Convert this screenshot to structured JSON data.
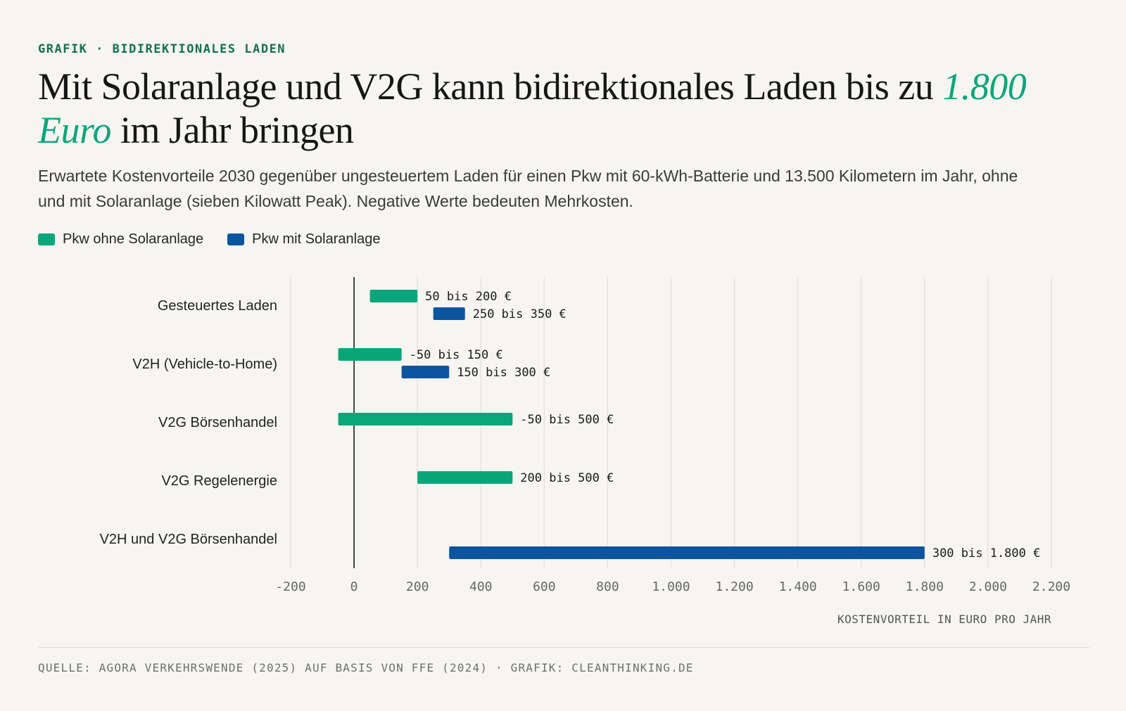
{
  "kicker": "GRAFIK · BIDIREKTIONALES LADEN",
  "title": {
    "before": "Mit Solaranlage und V2G kann bidirektionales Laden bis zu ",
    "highlight": "1.800 Euro",
    "after": " im Jahr bringen"
  },
  "subtitle": "Erwartete Kostenvorteile 2030 gegenüber ungesteuertem Laden für einen Pkw mit 60-kWh-Batterie und 13.500 Kilometern im Jahr, ohne und mit Solaranlage (sieben Kilowatt Peak). Negative Werte bedeuten Mehrkosten.",
  "colors": {
    "green": "#0aa67a",
    "blue": "#0b55a0",
    "highlight": "#0aa67a"
  },
  "legend": [
    {
      "label": "Pkw ohne Solaranlage",
      "color": "#0aa67a"
    },
    {
      "label": "Pkw mit Solaranlage",
      "color": "#0b55a0"
    }
  ],
  "chart_data": {
    "type": "bar",
    "orientation": "horizontal-range",
    "categories": [
      "Gesteuertes Laden",
      "V2H (Vehicle-to-Home)",
      "V2G Börsenhandel",
      "V2G Regelenergie",
      "V2H und V2G Börsenhandel"
    ],
    "series": [
      {
        "name": "Pkw ohne Solaranlage",
        "color": "#0aa67a",
        "ranges": [
          [
            50,
            200
          ],
          [
            -50,
            150
          ],
          [
            -50,
            500
          ],
          [
            200,
            500
          ],
          null
        ],
        "labels": [
          "50 bis 200 €",
          "-50 bis 150 €",
          "-50 bis 500 €",
          "200 bis 500 €",
          null
        ]
      },
      {
        "name": "Pkw mit Solaranlage",
        "color": "#0b55a0",
        "ranges": [
          [
            250,
            350
          ],
          [
            150,
            300
          ],
          null,
          null,
          [
            300,
            1800
          ]
        ],
        "labels": [
          "250 bis 350 €",
          "150 bis 300 €",
          null,
          null,
          "300 bis 1.800 €"
        ]
      }
    ],
    "xlim": [
      -200,
      2200
    ],
    "xticks": [
      -200,
      0,
      200,
      400,
      600,
      800,
      1000,
      1200,
      1400,
      1600,
      1800,
      2000,
      2200
    ],
    "xtick_labels": [
      "-200",
      "0",
      "200",
      "400",
      "600",
      "800",
      "1.000",
      "1.200",
      "1.400",
      "1.600",
      "1.800",
      "2.000",
      "2.200"
    ],
    "xlabel": "KOSTENVORTEIL IN EURO PRO JAHR",
    "grid": true,
    "legend_position": "top-left"
  },
  "source": "QUELLE: AGORA VERKEHRSWENDE (2025) AUF BASIS VON FFE (2024) · GRAFIK: CLEANTHINKING.DE"
}
